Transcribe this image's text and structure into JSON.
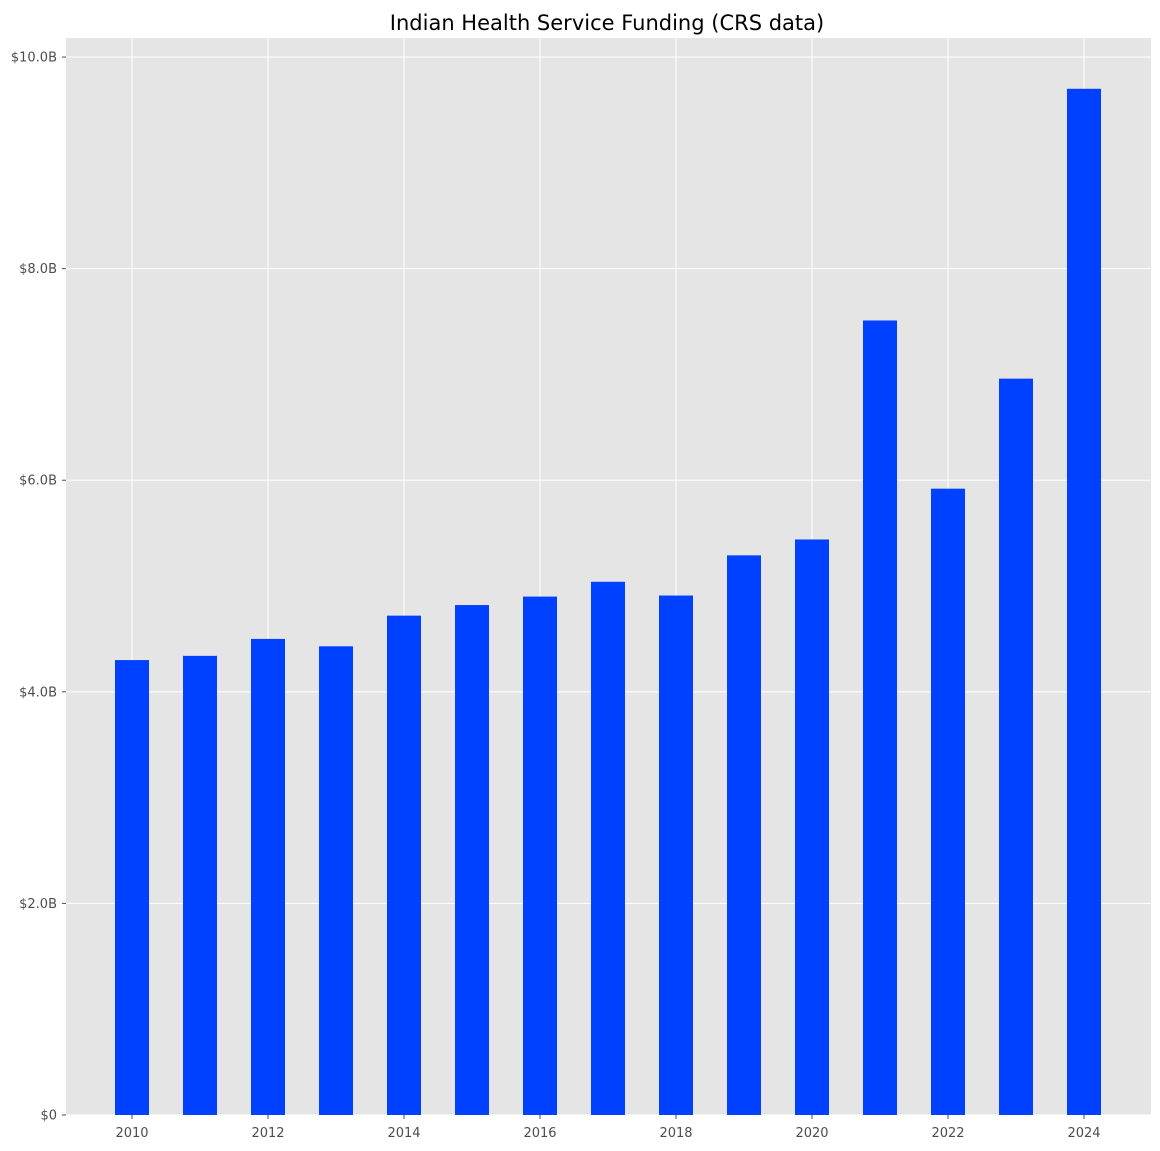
{
  "chart_data": {
    "type": "bar",
    "title": "Indian Health Service Funding (CRS data)",
    "xlabel": "",
    "ylabel": "",
    "categories": [
      "2010",
      "2011",
      "2012",
      "2013",
      "2014",
      "2015",
      "2016",
      "2017",
      "2018",
      "2019",
      "2020",
      "2021",
      "2022",
      "2023",
      "2024"
    ],
    "values": [
      4.3,
      4.34,
      4.5,
      4.43,
      4.72,
      4.82,
      4.9,
      5.04,
      4.91,
      5.29,
      5.44,
      7.51,
      5.92,
      6.96,
      9.7
    ],
    "value_unit": "billions of US dollars",
    "x_tick_labels": [
      "2010",
      "2012",
      "2014",
      "2016",
      "2018",
      "2020",
      "2022",
      "2024"
    ],
    "y_ticks": [
      0,
      2,
      4,
      6,
      8,
      10
    ],
    "y_tick_labels": [
      "$0",
      "$2.0B",
      "$4.0B",
      "$6.0B",
      "$8.0B",
      "$10.0B"
    ],
    "ylim": [
      0,
      10.18
    ],
    "grid": true,
    "legend": "none"
  },
  "style": {
    "bar_color": "#0040ff",
    "plot_background": "#e5e5e5",
    "grid_color": "#ffffff",
    "tick_color": "#4d4d4d",
    "title_color": "#000000"
  }
}
